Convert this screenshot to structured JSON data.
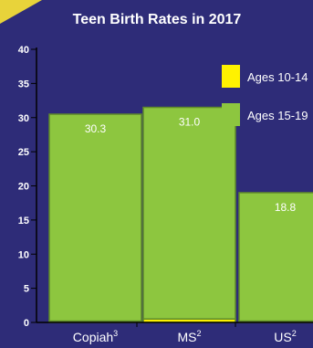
{
  "chart_data": {
    "type": "bar",
    "stacked": true,
    "title": "Teen Birth Rates in 2017",
    "categories": [
      {
        "name": "Copiah",
        "sup": "3"
      },
      {
        "name": "MS",
        "sup": "2"
      },
      {
        "name": "US",
        "sup": "2"
      }
    ],
    "series": [
      {
        "name": "Ages 10-14",
        "color": "#fff200",
        "values": [
          0.2,
          0.5,
          0.2
        ]
      },
      {
        "name": "Ages 15-19",
        "color": "#8dc63f",
        "values": [
          30.3,
          31.0,
          18.8
        ]
      }
    ],
    "data_labels": [
      "30.3",
      "31.0",
      "18.8"
    ],
    "ylim": [
      0,
      40
    ],
    "yticks": [
      0,
      5,
      10,
      15,
      20,
      25,
      30,
      35,
      40
    ],
    "xlabel": "",
    "ylabel": "",
    "legend_position": "right",
    "grid": false,
    "colors": {
      "background": "#2e2c78",
      "text": "#ffffff",
      "axis": "#000000",
      "bar_border": "#5f8a2a",
      "corner_accent": "#e8d33a"
    }
  }
}
